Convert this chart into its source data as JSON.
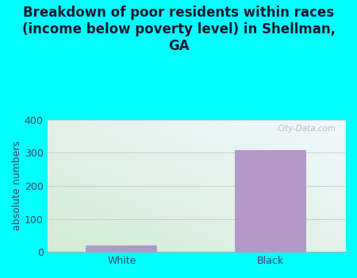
{
  "title": "Breakdown of poor residents within races\n(income below poverty level) in Shellman,\nGA",
  "categories": [
    "White",
    "Black"
  ],
  "values": [
    20,
    308
  ],
  "bar_color": "#b399c8",
  "ylabel": "absolute numbers",
  "ylim": [
    0,
    400
  ],
  "yticks": [
    0,
    100,
    200,
    300,
    400
  ],
  "background_color": "#00ffff",
  "title_fontsize": 12,
  "axis_label_fontsize": 9,
  "tick_fontsize": 9,
  "watermark": "City-Data.com",
  "title_color": "#1a1a2e",
  "tick_color": "#444466",
  "ylabel_color": "#444466"
}
